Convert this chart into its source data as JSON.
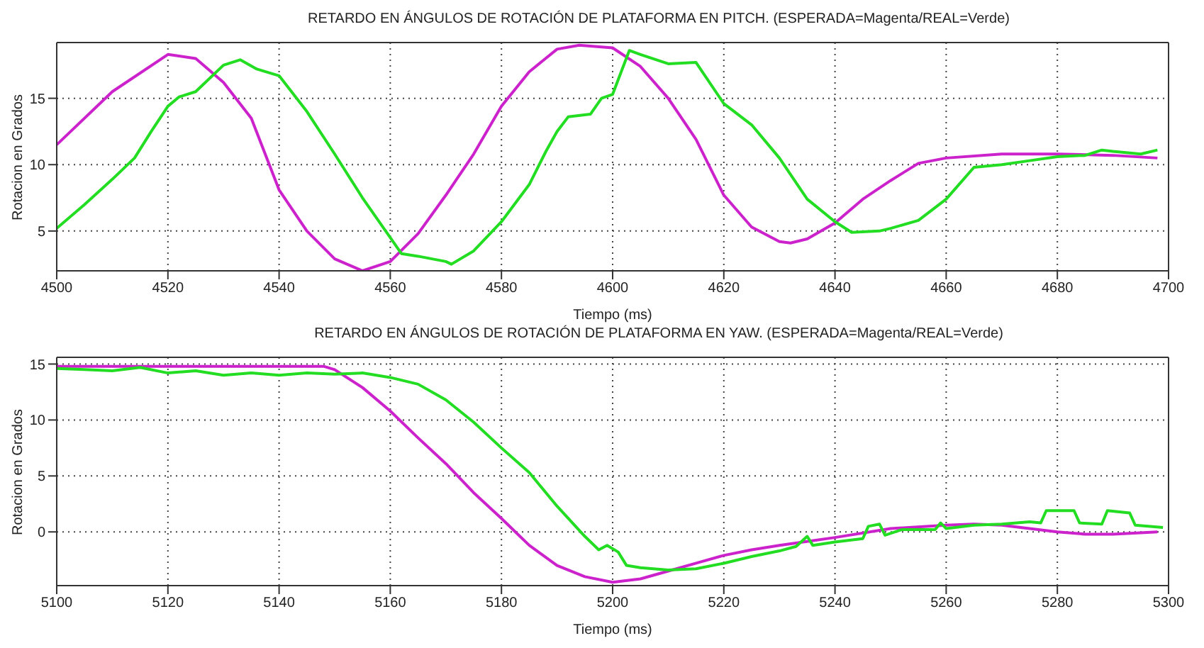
{
  "chart_data": [
    {
      "type": "line",
      "title": "RETARDO EN ÁNGULOS DE ROTACIÓN DE PLATAFORMA EN PITCH. (ESPERADA=Magenta/REAL=Verde)",
      "xlabel": "Tiempo (ms)",
      "ylabel": "Rotacion en Grados",
      "xlim": [
        4500,
        4700
      ],
      "xticks": [
        4500,
        4520,
        4540,
        4560,
        4580,
        4600,
        4620,
        4640,
        4660,
        4680,
        4700
      ],
      "ylim": [
        2,
        19.2
      ],
      "yticks": [
        5,
        10,
        15
      ],
      "grid": true,
      "legend": false,
      "series": [
        {
          "color": "#cc22cc",
          "x": [
            4500,
            4510,
            4520,
            4525,
            4530,
            4535,
            4540,
            4545,
            4550,
            4555,
            4560,
            4565,
            4570,
            4575,
            4580,
            4585,
            4590,
            4594,
            4600,
            4605,
            4610,
            4615,
            4620,
            4625,
            4630,
            4632,
            4635,
            4640,
            4645,
            4650,
            4655,
            4660,
            4670,
            4680,
            4690,
            4698
          ],
          "values": [
            11.5,
            15.5,
            18.3,
            18,
            16.2,
            13.5,
            8.1,
            5,
            2.9,
            2,
            2.7,
            4.8,
            7.7,
            10.8,
            14.4,
            17,
            18.7,
            19,
            18.8,
            17.4,
            15,
            11.9,
            7.7,
            5.3,
            4.2,
            4.1,
            4.4,
            5.6,
            7.4,
            8.8,
            10.1,
            10.5,
            10.8,
            10.8,
            10.7,
            10.5
          ]
        },
        {
          "color": "#22dd22",
          "x": [
            4500,
            4505,
            4510,
            4514,
            4517,
            4520,
            4522,
            4525,
            4530,
            4533,
            4536,
            4540,
            4545,
            4550,
            4555,
            4560,
            4562,
            4565,
            4570,
            4571,
            4575,
            4580,
            4585,
            4588,
            4590,
            4592,
            4596,
            4598,
            4600,
            4603,
            4605,
            4610,
            4615,
            4620,
            4625,
            4630,
            4635,
            4640,
            4643,
            4648,
            4650,
            4655,
            4660,
            4665,
            4670,
            4675,
            4680,
            4685,
            4688,
            4690,
            4695,
            4698
          ],
          "values": [
            5.2,
            7,
            8.9,
            10.5,
            12.5,
            14.4,
            15.1,
            15.5,
            17.5,
            17.9,
            17.2,
            16.7,
            14,
            10.8,
            7.5,
            4.5,
            3.3,
            3.1,
            2.7,
            2.5,
            3.5,
            5.7,
            8.5,
            11,
            12.5,
            13.6,
            13.8,
            15,
            15.3,
            18.6,
            18.3,
            17.6,
            17.7,
            14.6,
            13,
            10.5,
            7.4,
            5.7,
            4.9,
            5,
            5.2,
            5.8,
            7.4,
            9.8,
            10,
            10.3,
            10.6,
            10.7,
            11.1,
            11,
            10.8,
            11.1
          ]
        }
      ]
    },
    {
      "type": "line",
      "title": "RETARDO EN ÁNGULOS DE ROTACIÓN DE PLATAFORMA EN YAW. (ESPERADA=Magenta/REAL=Verde)",
      "xlabel": "Tiempo (ms)",
      "ylabel": "Rotacion en Grados",
      "xlim": [
        5100,
        5300
      ],
      "xticks": [
        5100,
        5120,
        5140,
        5160,
        5180,
        5200,
        5220,
        5240,
        5260,
        5280,
        5300
      ],
      "ylim": [
        -4.8,
        15.6
      ],
      "yticks": [
        0,
        5,
        10,
        15
      ],
      "grid": true,
      "legend": false,
      "series": [
        {
          "color": "#cc22cc",
          "x": [
            5100,
            5120,
            5140,
            5148,
            5150,
            5155,
            5160,
            5165,
            5170,
            5175,
            5180,
            5185,
            5190,
            5195,
            5200,
            5205,
            5210,
            5215,
            5220,
            5225,
            5230,
            5240,
            5250,
            5260,
            5265,
            5270,
            5280,
            5285,
            5290,
            5298
          ],
          "values": [
            14.8,
            14.8,
            14.8,
            14.8,
            14.5,
            12.9,
            10.8,
            8.4,
            6.1,
            3.5,
            1.2,
            -1.2,
            -3,
            -4,
            -4.5,
            -4.2,
            -3.5,
            -2.8,
            -2.1,
            -1.6,
            -1.2,
            -0.5,
            0.3,
            0.6,
            0.7,
            0.6,
            0,
            -0.2,
            -0.2,
            0
          ]
        },
        {
          "color": "#22dd22",
          "x": [
            5100,
            5105,
            5110,
            5115,
            5120,
            5125,
            5130,
            5135,
            5140,
            5145,
            5150,
            5155,
            5160,
            5165,
            5170,
            5175,
            5180,
            5185,
            5190,
            5195,
            5197.5,
            5199,
            5201,
            5202.5,
            5205,
            5210,
            5215,
            5220,
            5225,
            5230,
            5233,
            5235,
            5236,
            5240,
            5245,
            5246,
            5248,
            5249,
            5252,
            5258,
            5259,
            5260,
            5265,
            5270,
            5275,
            5277,
            5278,
            5283,
            5284,
            5288,
            5289,
            5293,
            5294,
            5299
          ],
          "values": [
            14.6,
            14.5,
            14.4,
            14.7,
            14.2,
            14.4,
            14,
            14.2,
            14,
            14.2,
            14.1,
            14.2,
            13.8,
            13.2,
            11.8,
            9.8,
            7.5,
            5.3,
            2.3,
            -0.4,
            -1.6,
            -1.2,
            -1.8,
            -3,
            -3.2,
            -3.4,
            -3.3,
            -2.8,
            -2.2,
            -1.7,
            -1.3,
            -0.4,
            -1.2,
            -0.9,
            -0.6,
            0.5,
            0.7,
            -0.3,
            0.2,
            0.2,
            0.8,
            0.3,
            0.6,
            0.7,
            0.9,
            0.8,
            1.9,
            1.9,
            0.8,
            0.7,
            1.9,
            1.7,
            0.6,
            0.4
          ]
        }
      ]
    }
  ]
}
